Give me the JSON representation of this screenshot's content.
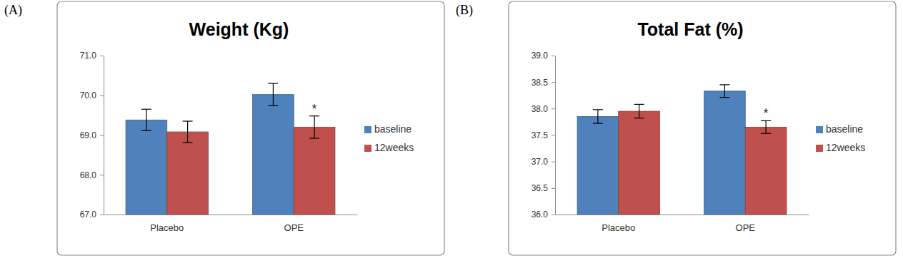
{
  "chart_data": [
    {
      "type": "bar",
      "panel_label": "(A)",
      "title": "Weight (Kg)",
      "categories": [
        "Placebo",
        "OPE"
      ],
      "series": [
        {
          "name": "baseline",
          "color": "#4f81bd",
          "values": [
            69.38,
            70.02
          ],
          "errors": [
            0.27,
            0.28
          ]
        },
        {
          "name": "12weeks",
          "color": "#c0504d",
          "values": [
            69.08,
            69.2
          ],
          "errors": [
            0.27,
            0.28
          ]
        }
      ],
      "ylim": [
        67,
        71
      ],
      "yticks": [
        {
          "value": 67,
          "label": "67.0"
        },
        {
          "value": 68,
          "label": "68.0"
        },
        {
          "value": 69,
          "label": "69.0"
        },
        {
          "value": 70,
          "label": "70.0"
        },
        {
          "value": 71,
          "label": "71.0"
        }
      ],
      "grid": false,
      "legend": "right",
      "annotations": [
        {
          "text": "*",
          "category": "OPE",
          "series": "12weeks"
        }
      ]
    },
    {
      "type": "bar",
      "panel_label": "(B)",
      "title": "Total Fat (%)",
      "categories": [
        "Placebo",
        "OPE"
      ],
      "series": [
        {
          "name": "baseline",
          "color": "#4f81bd",
          "values": [
            37.85,
            38.33
          ],
          "errors": [
            0.13,
            0.12
          ]
        },
        {
          "name": "12weeks",
          "color": "#c0504d",
          "values": [
            37.95,
            37.65
          ],
          "errors": [
            0.13,
            0.12
          ]
        }
      ],
      "ylim": [
        36,
        39
      ],
      "yticks": [
        {
          "value": 36,
          "label": "36.0"
        },
        {
          "value": 36.5,
          "label": "36.5"
        },
        {
          "value": 37,
          "label": "37.0"
        },
        {
          "value": 37.5,
          "label": "37.5"
        },
        {
          "value": 38,
          "label": "38.0"
        },
        {
          "value": 38.5,
          "label": "38.5"
        },
        {
          "value": 39,
          "label": "39.0"
        }
      ],
      "grid": false,
      "legend": "right",
      "annotations": [
        {
          "text": "*",
          "category": "OPE",
          "series": "12weeks"
        }
      ]
    }
  ]
}
